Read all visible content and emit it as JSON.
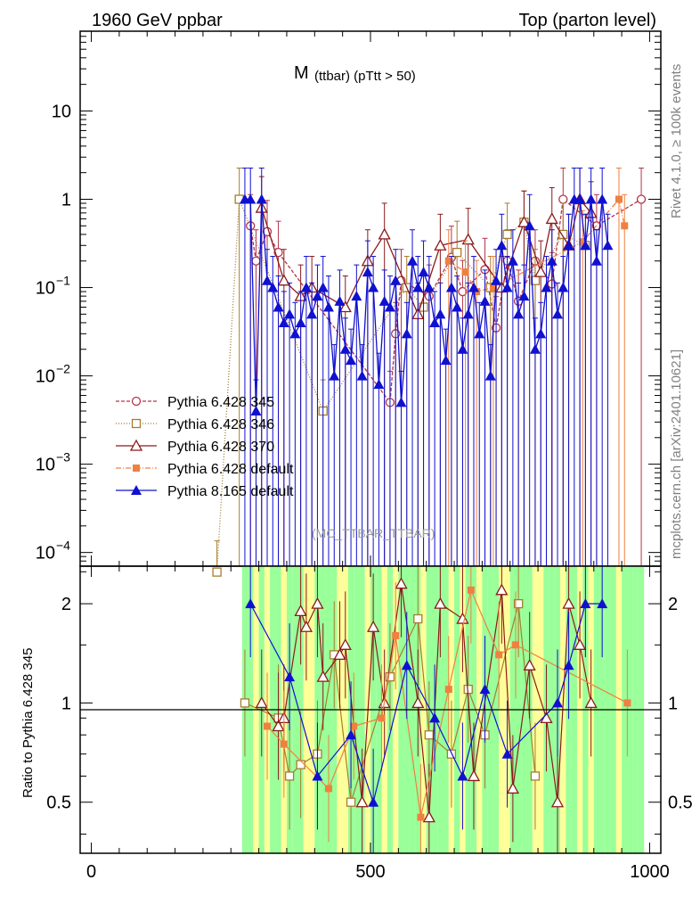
{
  "header": {
    "left": "1960 GeV ppbar",
    "right": "Top (parton level)"
  },
  "side_labels": {
    "rivet": "Rivet 4.1.0, ≥ 100k events",
    "mcplots": "mcplots.cern.ch [arXiv:2401.10621]"
  },
  "chart_data": [
    {
      "panel": "main",
      "type": "line",
      "title_main": "M",
      "title_sub": "(ttbar) (pTtt > 50)",
      "analysis_id": "(MC_TTBAR_TTBAR)",
      "xlabel": "",
      "ylabel": "",
      "yscale": "log",
      "ylim": [
        7e-05,
        80
      ],
      "xlim": [
        -20,
        1020
      ],
      "x_ticks": [
        0,
        500,
        1000
      ],
      "y_ticks": [
        {
          "value": 10,
          "label": "10"
        },
        {
          "value": 1,
          "label": "1"
        },
        {
          "value": 0.1,
          "label": "10",
          "exp": "−1"
        },
        {
          "value": 0.01,
          "label": "10",
          "exp": "−2"
        },
        {
          "value": 0.001,
          "label": "10",
          "exp": "−3"
        },
        {
          "value": 0.0001,
          "label": "10",
          "exp": "−4"
        }
      ],
      "legend_position": "left-middle",
      "series": [
        {
          "name": "Pythia 6.428 345",
          "color": "#b5344a",
          "marker": "open-circle",
          "dash": "4,2",
          "x": [
            285,
            295,
            315,
            335,
            535,
            545,
            555,
            605,
            645,
            665,
            705,
            725,
            745,
            765,
            795,
            825,
            845,
            905,
            985
          ],
          "y": [
            0.5,
            0.2,
            0.43,
            0.25,
            0.005,
            0.03,
            0.12,
            0.08,
            0.22,
            0.09,
            0.16,
            0.035,
            0.2,
            0.07,
            0.2,
            0.11,
            1.0,
            0.5,
            1.0
          ]
        },
        {
          "name": "Pythia 6.428 346",
          "color": "#a57d2e",
          "marker": "open-square",
          "dash": "1,2",
          "x": [
            225,
            265,
            415,
            565,
            595,
            655,
            715,
            745,
            775,
            795,
            845,
            885
          ],
          "y": [
            6e-05,
            1.0,
            0.004,
            0.1,
            0.06,
            0.25,
            0.1,
            0.4,
            0.55,
            0.12,
            0.4,
            0.3
          ]
        },
        {
          "name": "Pythia 6.428 370",
          "color": "#8b1a1a",
          "marker": "open-triangle",
          "dash": "",
          "x": [
            305,
            345,
            375,
            395,
            455,
            495,
            525,
            585,
            625,
            675,
            735,
            775,
            805,
            825,
            855,
            875,
            895
          ],
          "y": [
            0.8,
            0.12,
            0.08,
            0.1,
            0.06,
            0.2,
            0.4,
            0.05,
            0.3,
            0.35,
            0.1,
            0.55,
            0.15,
            0.6,
            0.3,
            1.0,
            0.7
          ]
        },
        {
          "name": "Pythia 6.428 default",
          "color": "#f08040",
          "marker": "filled-square",
          "dash": "6,2,1,2",
          "x": [
            640,
            670,
            690,
            720,
            880,
            945,
            955
          ],
          "y": [
            0.2,
            0.15,
            0.09,
            0.1,
            0.33,
            1.0,
            0.5
          ]
        },
        {
          "name": "Pythia 8.165 default",
          "color": "#1010d0",
          "marker": "filled-triangle",
          "dash": "",
          "x": [
            275,
            285,
            295,
            305,
            315,
            325,
            335,
            345,
            355,
            365,
            375,
            385,
            395,
            405,
            415,
            425,
            435,
            445,
            455,
            465,
            475,
            485,
            495,
            505,
            515,
            525,
            535,
            545,
            555,
            565,
            575,
            585,
            595,
            605,
            615,
            625,
            635,
            645,
            655,
            665,
            675,
            685,
            695,
            705,
            715,
            725,
            735,
            745,
            755,
            765,
            775,
            785,
            795,
            805,
            815,
            825,
            835,
            845,
            855,
            865,
            875,
            885,
            895,
            905,
            915,
            925
          ],
          "y": [
            1.0,
            1.0,
            0.004,
            1.0,
            0.12,
            0.1,
            0.06,
            0.04,
            0.05,
            0.03,
            0.04,
            0.1,
            0.05,
            0.08,
            0.1,
            0.06,
            0.01,
            0.07,
            0.02,
            0.015,
            0.08,
            0.01,
            0.15,
            0.1,
            0.008,
            0.07,
            0.06,
            0.12,
            0.005,
            0.03,
            0.2,
            0.1,
            0.15,
            0.1,
            0.04,
            0.05,
            0.015,
            0.1,
            0.06,
            0.02,
            0.05,
            0.1,
            0.03,
            0.07,
            0.01,
            0.12,
            0.3,
            0.1,
            0.2,
            0.05,
            0.08,
            0.5,
            0.02,
            0.03,
            0.1,
            0.2,
            0.05,
            0.1,
            0.3,
            1.0,
            1.0,
            0.3,
            1.0,
            0.2,
            1.0,
            0.3
          ]
        }
      ]
    },
    {
      "panel": "ratio",
      "type": "line",
      "ylabel": "Ratio to Pythia 6.428 345",
      "yscale": "log",
      "ylim": [
        0.35,
        2.6
      ],
      "xlim": [
        -20,
        1020
      ],
      "x_ticks": [
        0,
        500,
        1000
      ],
      "y_ticks": [
        {
          "value": 0.5,
          "label": "0.5"
        },
        {
          "value": 1,
          "label": "1"
        },
        {
          "value": 2,
          "label": "2"
        }
      ],
      "reference": 1,
      "band": {
        "x_start": 270,
        "x_end": 990,
        "green_height": [
          0.35,
          2.6
        ],
        "yellow_height": [
          0.35,
          2.6
        ]
      },
      "series": [
        {
          "name": "Pythia 6.428 346",
          "color": "#a57d2e",
          "marker": "open-square",
          "x": [
            275,
            335,
            355,
            375,
            405,
            435,
            465,
            535,
            585,
            605,
            645,
            675,
            705,
            765,
            795
          ],
          "y": [
            1.0,
            0.9,
            0.6,
            0.65,
            0.7,
            1.4,
            0.5,
            1.2,
            1.8,
            0.8,
            0.7,
            1.1,
            0.8,
            2.0,
            0.6
          ]
        },
        {
          "name": "Pythia 6.428 370",
          "color": "#8b1a1a",
          "marker": "open-triangle",
          "x": [
            305,
            335,
            345,
            375,
            385,
            405,
            415,
            445,
            455,
            485,
            505,
            525,
            555,
            585,
            605,
            625,
            665,
            685,
            735,
            755,
            785,
            815,
            835,
            855,
            875,
            895
          ],
          "y": [
            1.0,
            0.85,
            0.9,
            1.9,
            1.7,
            2.0,
            1.2,
            1.4,
            1.5,
            0.5,
            1.7,
            1.0,
            2.3,
            1.0,
            0.45,
            2.0,
            1.8,
            0.6,
            2.2,
            0.55,
            1.3,
            0.9,
            0.5,
            2.0,
            1.5,
            1.0
          ]
        },
        {
          "name": "Pythia 6.428 default",
          "color": "#f08040",
          "marker": "filled-square",
          "x": [
            315,
            345,
            425,
            470,
            520,
            545,
            590,
            640,
            680,
            730,
            760,
            960
          ],
          "y": [
            0.85,
            0.75,
            0.55,
            0.85,
            0.9,
            1.6,
            0.45,
            1.1,
            2.2,
            1.4,
            1.5,
            1.0
          ]
        },
        {
          "name": "Pythia 8.165 default",
          "color": "#1010d0",
          "marker": "filled-triangle",
          "x": [
            285,
            355,
            405,
            465,
            505,
            565,
            615,
            665,
            705,
            745,
            835,
            855,
            885,
            915
          ],
          "y": [
            2.0,
            1.2,
            0.6,
            0.8,
            0.5,
            1.3,
            0.9,
            0.6,
            1.1,
            0.7,
            1.0,
            1.3,
            2.0,
            2.0
          ]
        }
      ]
    }
  ]
}
